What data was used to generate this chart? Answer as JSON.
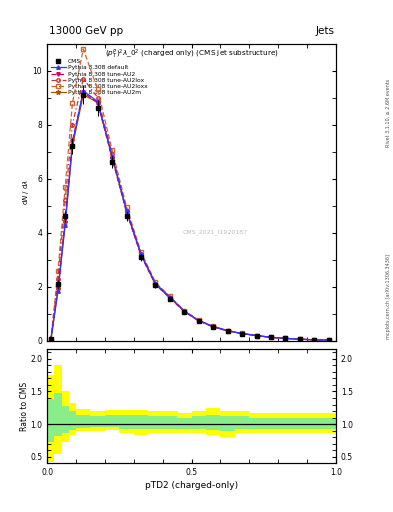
{
  "title_top_left": "13000 GeV pp",
  "title_top_right": "Jets",
  "plot_subtitle": "$(p_T^P)^2\\lambda\\_0^2$ (charged only) (CMS jet substructure)",
  "xlabel": "pTD2 (charged-only)",
  "ylabel_ratio": "Ratio to CMS",
  "watermark": "CMS_2021_I1920187",
  "right_label_top": "Rivet 3.1.10, ≥ 2.6M events",
  "right_label_bottom": "mcplots.cern.ch [arXiv:1306.3436]",
  "x_edges": [
    0.0,
    0.025,
    0.05,
    0.075,
    0.1,
    0.15,
    0.2,
    0.25,
    0.3,
    0.35,
    0.4,
    0.45,
    0.5,
    0.55,
    0.6,
    0.65,
    0.7,
    0.75,
    0.8,
    0.85,
    0.9,
    0.95,
    1.0
  ],
  "x_centers": [
    0.0125,
    0.0375,
    0.0625,
    0.0875,
    0.125,
    0.175,
    0.225,
    0.275,
    0.325,
    0.375,
    0.425,
    0.475,
    0.525,
    0.575,
    0.625,
    0.675,
    0.725,
    0.775,
    0.825,
    0.875,
    0.925,
    0.975
  ],
  "cms_y": [
    0.05,
    2.1,
    4.6,
    7.2,
    9.1,
    8.6,
    6.6,
    4.6,
    3.1,
    2.05,
    1.55,
    1.05,
    0.72,
    0.51,
    0.36,
    0.26,
    0.185,
    0.125,
    0.088,
    0.058,
    0.034,
    0.021
  ],
  "cms_yerr": [
    0.02,
    0.15,
    0.22,
    0.3,
    0.35,
    0.3,
    0.22,
    0.18,
    0.13,
    0.09,
    0.07,
    0.05,
    0.04,
    0.03,
    0.025,
    0.018,
    0.013,
    0.009,
    0.006,
    0.004,
    0.003,
    0.002
  ],
  "pythia_default_y": [
    0.01,
    1.85,
    4.3,
    7.3,
    9.25,
    8.85,
    6.85,
    4.82,
    3.22,
    2.12,
    1.62,
    1.1,
    0.75,
    0.53,
    0.375,
    0.27,
    0.192,
    0.13,
    0.091,
    0.06,
    0.036,
    0.022
  ],
  "pythia_au2_y": [
    0.01,
    1.95,
    4.5,
    7.4,
    9.2,
    8.8,
    6.75,
    4.75,
    3.15,
    2.08,
    1.58,
    1.08,
    0.73,
    0.51,
    0.365,
    0.265,
    0.188,
    0.128,
    0.089,
    0.059,
    0.035,
    0.022
  ],
  "pythia_au2lox_y": [
    0.01,
    2.3,
    5.2,
    8.0,
    9.7,
    9.0,
    6.9,
    4.82,
    3.2,
    2.1,
    1.6,
    1.09,
    0.74,
    0.52,
    0.37,
    0.268,
    0.19,
    0.129,
    0.09,
    0.06,
    0.036,
    0.022
  ],
  "pythia_au2loxx_y": [
    0.01,
    2.6,
    5.7,
    8.8,
    10.8,
    9.3,
    7.05,
    4.95,
    3.28,
    2.16,
    1.64,
    1.12,
    0.76,
    0.535,
    0.38,
    0.272,
    0.193,
    0.131,
    0.092,
    0.061,
    0.036,
    0.022
  ],
  "pythia_au2m_y": [
    0.01,
    1.9,
    4.4,
    7.2,
    9.1,
    8.82,
    6.78,
    4.78,
    3.18,
    2.09,
    1.59,
    1.09,
    0.74,
    0.52,
    0.368,
    0.267,
    0.189,
    0.129,
    0.09,
    0.059,
    0.035,
    0.022
  ],
  "ratio_yellow_lo": [
    0.42,
    0.55,
    0.72,
    0.83,
    0.89,
    0.9,
    0.91,
    0.87,
    0.84,
    0.87,
    0.87,
    0.87,
    0.87,
    0.83,
    0.81,
    0.87,
    0.87,
    0.87,
    0.87,
    0.87,
    0.87,
    0.87
  ],
  "ratio_yellow_hi": [
    1.75,
    1.9,
    1.5,
    1.33,
    1.23,
    1.2,
    1.22,
    1.22,
    1.22,
    1.2,
    1.2,
    1.17,
    1.2,
    1.25,
    1.2,
    1.2,
    1.17,
    1.17,
    1.17,
    1.17,
    1.17,
    1.17
  ],
  "ratio_green_lo": [
    0.72,
    0.82,
    0.86,
    0.91,
    0.94,
    0.95,
    0.96,
    0.93,
    0.92,
    0.93,
    0.93,
    0.93,
    0.93,
    0.91,
    0.89,
    0.93,
    0.93,
    0.93,
    0.93,
    0.93,
    0.93,
    0.93
  ],
  "ratio_green_hi": [
    1.38,
    1.48,
    1.28,
    1.2,
    1.14,
    1.12,
    1.14,
    1.14,
    1.14,
    1.12,
    1.12,
    1.1,
    1.12,
    1.14,
    1.12,
    1.12,
    1.1,
    1.1,
    1.1,
    1.1,
    1.1,
    1.1
  ],
  "ylim_main": [
    0,
    11
  ],
  "ylim_ratio": [
    0.4,
    2.15
  ],
  "xlim": [
    0.0,
    1.0
  ],
  "yticks_main": [
    0,
    2,
    4,
    6,
    8,
    10
  ],
  "yticks_ratio": [
    0.5,
    1.0,
    1.5,
    2.0
  ],
  "xticks": [
    0.0,
    0.5,
    1.0
  ],
  "color_default": "#3333ff",
  "color_au2": "#cc0066",
  "color_au2lox": "#cc3333",
  "color_au2loxx": "#cc6633",
  "color_au2m": "#aa5500"
}
